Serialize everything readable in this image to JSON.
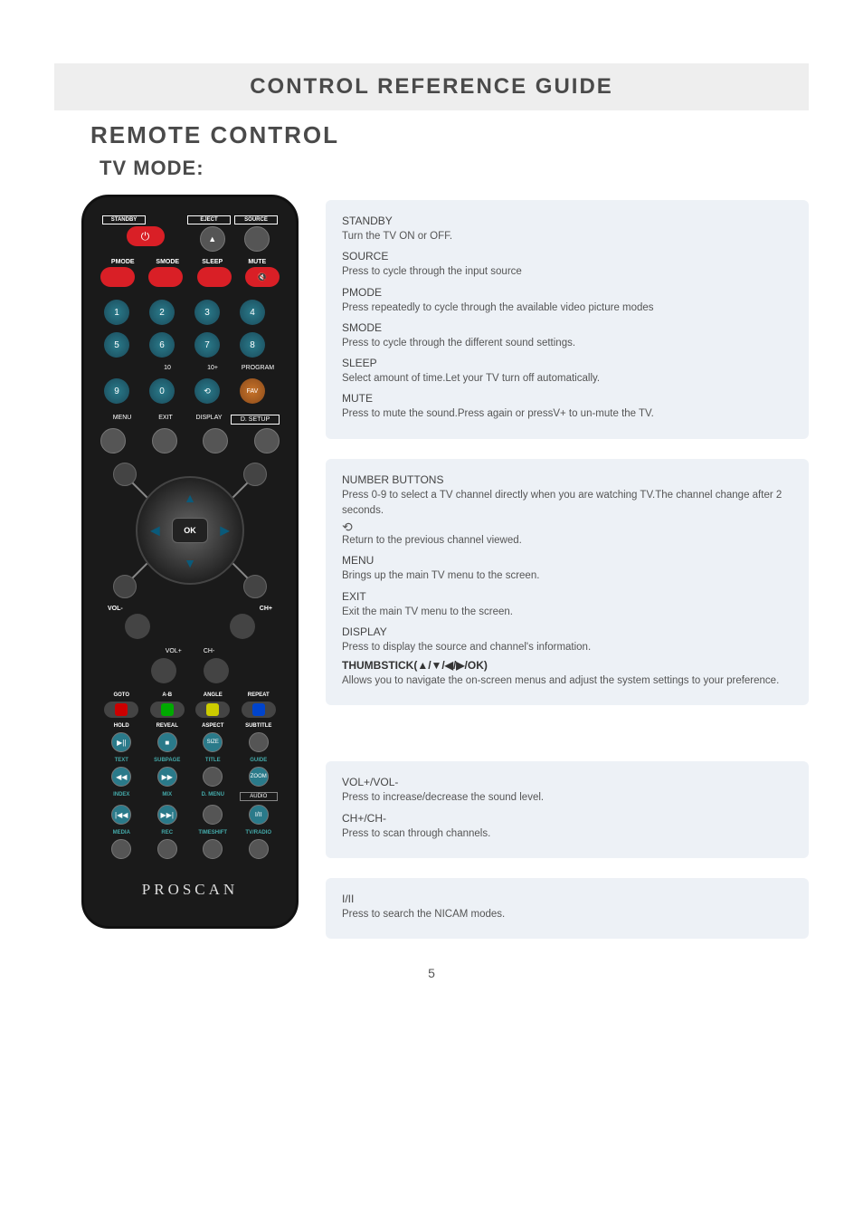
{
  "page": {
    "title_bar": "CONTROL REFERENCE GUIDE",
    "section": "REMOTE CONTROL",
    "subsection": "TV MODE:",
    "page_number": "5"
  },
  "remote": {
    "row1_labels": [
      "STANDBY",
      "EJECT",
      "SOURCE"
    ],
    "row1_eject_glyph": "▲",
    "row2_labels": [
      "PMODE",
      "SMODE",
      "SLEEP",
      "MUTE"
    ],
    "numbers": [
      "1",
      "2",
      "3",
      "4",
      "5",
      "6",
      "7",
      "8",
      "9",
      "0"
    ],
    "under_numbers": [
      "10",
      "10+",
      "PROGRAM"
    ],
    "loop_icon": "⟲",
    "fav": "FAV",
    "row_menu_labels": [
      "MENU",
      "EXIT",
      "DISPLAY",
      "D. SETUP"
    ],
    "ok": "OK",
    "vol_minus": "VOL-",
    "ch_plus": "CH+",
    "vol_plus": "VOL+",
    "ch_minus": "CH-",
    "media_row1": [
      "GOTO",
      "A-B",
      "ANGLE",
      "REPEAT"
    ],
    "media_row2": [
      "HOLD",
      "REVEAL",
      "ASPECT",
      "SUBTITLE"
    ],
    "media_row2b": [
      "▶||",
      "■",
      "SIZE",
      ""
    ],
    "media_row3": [
      "TEXT",
      "SUBPAGE",
      "TITLE",
      "GUIDE"
    ],
    "media_row3b": [
      "◀◀",
      "▶▶",
      "",
      "ZOOM"
    ],
    "media_row4": [
      "INDEX",
      "MIX",
      "D. MENU",
      "AUDIO"
    ],
    "media_row4b": [
      "|◀◀",
      "▶▶|",
      "",
      "I/II"
    ],
    "media_row5": [
      "MEDIA",
      "REC",
      "TIMESHIFT",
      "TV/RADIO"
    ],
    "brand": "PROSCAN"
  },
  "panels": {
    "p1": {
      "items": [
        {
          "h": "STANDBY",
          "t": "Turn the TV ON or OFF."
        },
        {
          "h": "SOURCE",
          "t": "Press to cycle through the input source"
        },
        {
          "h": "PMODE",
          "t": "Press repeatedly to cycle through the available video picture modes"
        },
        {
          "h": "SMODE",
          "t": "Press to cycle through the different sound settings."
        },
        {
          "h": "SLEEP",
          "t": "Select amount of time.Let your TV turn off automatically."
        },
        {
          "h": "MUTE",
          "t": "Press to mute the sound.Press again or pressV+ to un-mute the TV."
        }
      ]
    },
    "p2": {
      "items": [
        {
          "h": "NUMBER BUTTONS",
          "t": "Press 0-9 to select a TV channel directly when you are watching TV.The channel change after 2 seconds."
        },
        {
          "icon": "⟲",
          "t": "Return to the previous channel viewed."
        },
        {
          "h": "MENU",
          "t": "Brings up the main TV menu to the screen."
        },
        {
          "h": "EXIT",
          "t": "Exit the main TV menu to the screen."
        },
        {
          "h": "DISPLAY",
          "t": "Press to display the source and channel's information."
        },
        {
          "hb": "THUMBSTICK(▲/▼/◀/▶/OK)",
          "t": "Allows you to navigate the on-screen menus and adjust the system settings to your preference."
        }
      ]
    },
    "p3": {
      "items": [
        {
          "h": "VOL+/VOL-",
          "t": "Press to increase/decrease the sound level."
        },
        {
          "h": "CH+/CH-",
          "t": "Press to scan through channels."
        }
      ]
    },
    "p4": {
      "items": [
        {
          "h": "I/II",
          "t": "Press to search the NICAM modes."
        }
      ]
    }
  },
  "colors": {
    "panel_bg": "#edf1f6",
    "title_bg": "#eeeeee",
    "text": "#5a5a5a",
    "remote_bg": "#1a1a1a",
    "red": "#d91f26",
    "teal": "#2a7a8a",
    "orange": "#c9742a"
  }
}
